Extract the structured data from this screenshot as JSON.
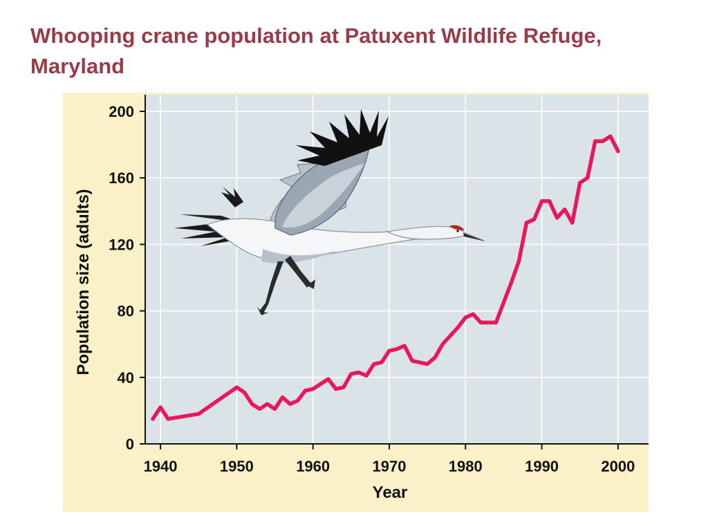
{
  "slide": {
    "title_line1": "Whooping crane population at Patuxent Wildlife Refuge,",
    "title_line2": "Maryland"
  },
  "colors": {
    "title": "#9b3b4a",
    "panel": "#fbf1c9",
    "plot": "#d9e3e8",
    "grid": "#ffffff",
    "line": "#e8185a",
    "axis": "#111111"
  },
  "chart_data": {
    "type": "line",
    "title": "",
    "xlabel": "Year",
    "ylabel": "Population size (adults)",
    "xlim": [
      1938,
      2004
    ],
    "ylim": [
      0,
      210
    ],
    "x_ticks": [
      1940,
      1950,
      1960,
      1970,
      1980,
      1990,
      2000
    ],
    "y_ticks": [
      0,
      40,
      80,
      120,
      160,
      200
    ],
    "grid": true,
    "illustration": "whooping-crane-in-flight",
    "series": [
      {
        "x": [
          1939,
          1940,
          1941,
          1945,
          1950,
          1951,
          1952,
          1953,
          1954,
          1955,
          1956,
          1957,
          1958,
          1959,
          1960,
          1961,
          1962,
          1963,
          1964,
          1965,
          1966,
          1967,
          1968,
          1969,
          1970,
          1971,
          1972,
          1973,
          1974,
          1975,
          1976,
          1977,
          1978,
          1979,
          1980,
          1981,
          1982,
          1983,
          1984,
          1985,
          1986,
          1987,
          1988,
          1989,
          1990,
          1991,
          1992,
          1993,
          1994,
          1995,
          1996,
          1997,
          1998,
          1999,
          2000
        ],
        "y": [
          15,
          22,
          15,
          18,
          34,
          31,
          24,
          21,
          24,
          21,
          28,
          24,
          26,
          32,
          33,
          36,
          39,
          33,
          34,
          42,
          43,
          41,
          48,
          49,
          56,
          57,
          59,
          50,
          49,
          48,
          52,
          60,
          65,
          70,
          76,
          78,
          73,
          73,
          73,
          85,
          97,
          110,
          133,
          135,
          146,
          146,
          136,
          141,
          133,
          157,
          160,
          182,
          182,
          185,
          176
        ]
      }
    ]
  }
}
